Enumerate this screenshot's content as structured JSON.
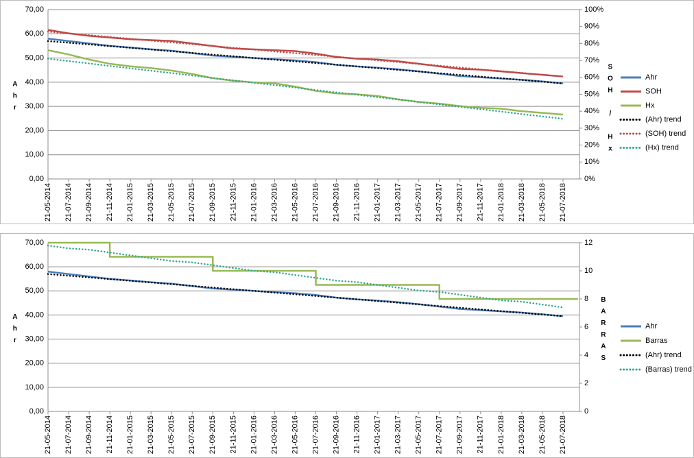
{
  "chart_data": [
    {
      "type": "line",
      "ylabel": "Ahr",
      "y2label": "SOH / Hx",
      "grid": true,
      "categories": [
        "21-05-2014",
        "21-07-2014",
        "21-09-2014",
        "21-11-2014",
        "21-01-2015",
        "21-03-2015",
        "21-05-2015",
        "21-07-2015",
        "21-09-2015",
        "21-11-2015",
        "21-01-2016",
        "21-03-2016",
        "21-05-2016",
        "21-07-2016",
        "21-09-2016",
        "21-11-2016",
        "21-01-2017",
        "21-03-2017",
        "21-05-2017",
        "21-07-2017",
        "21-09-2017",
        "21-11-2017",
        "21-01-2018",
        "21-03-2018",
        "21-05-2018",
        "21-07-2018"
      ],
      "ylim": [
        0,
        70
      ],
      "yticks": [
        {
          "value": 0,
          "label": "0,00"
        },
        {
          "value": 10,
          "label": "10,00"
        },
        {
          "value": 20,
          "label": "20,00"
        },
        {
          "value": 30,
          "label": "30,00"
        },
        {
          "value": 40,
          "label": "40,00"
        },
        {
          "value": 50,
          "label": "50,00"
        },
        {
          "value": 60,
          "label": "60,00"
        },
        {
          "value": 70,
          "label": "70,00"
        }
      ],
      "y2lim": [
        0,
        100
      ],
      "y2ticks": [
        {
          "value": 0,
          "label": "0%"
        },
        {
          "value": 10,
          "label": "10%"
        },
        {
          "value": 20,
          "label": "20%"
        },
        {
          "value": 30,
          "label": "30%"
        },
        {
          "value": 40,
          "label": "40%"
        },
        {
          "value": 50,
          "label": "50%"
        },
        {
          "value": 60,
          "label": "60%"
        },
        {
          "value": 70,
          "label": "70%"
        },
        {
          "value": 80,
          "label": "80%"
        },
        {
          "value": 90,
          "label": "90%"
        },
        {
          "value": 100,
          "label": "100%"
        }
      ],
      "series": [
        {
          "name": "Ahr",
          "color": "#4a7ebb",
          "values": [
            58,
            57,
            56,
            55,
            54.3,
            53.6,
            53,
            52,
            51,
            50.5,
            50,
            49.5,
            49,
            48.3,
            47.2,
            46.5,
            46,
            45.3,
            44.5,
            43.5,
            42.5,
            42,
            41.5,
            41,
            40.3,
            39.5
          ]
        },
        {
          "name": "SOH",
          "color": "#be4b48",
          "axis": "y2",
          "values": [
            88,
            86,
            84.5,
            83.5,
            82.5,
            82,
            81.5,
            80,
            78.5,
            77,
            76.5,
            76,
            75.5,
            74,
            72,
            71,
            70.5,
            69.5,
            68,
            66.5,
            65,
            64.5,
            63.5,
            62.5,
            61.5,
            60.5
          ]
        },
        {
          "name": "Hx",
          "color": "#98b954",
          "axis": "y2",
          "values": [
            76,
            73.5,
            70.5,
            68,
            66.5,
            65.5,
            64,
            62,
            59.5,
            58,
            57,
            56.5,
            54.5,
            52,
            50.5,
            50,
            49,
            47,
            45.5,
            44.5,
            43,
            42,
            41.5,
            40,
            39,
            38
          ]
        },
        {
          "name": "(Ahr) trend",
          "color": "#000000",
          "dotted": true,
          "values": [
            57,
            56.3,
            55.6,
            54.9,
            54.2,
            53.5,
            52.8,
            52.1,
            51.4,
            50.7,
            50,
            49.3,
            48.6,
            47.9,
            47.2,
            46.5,
            45.8,
            45.1,
            44.4,
            43.7,
            43,
            42.3,
            41.6,
            40.9,
            40.2,
            39.5
          ]
        },
        {
          "name": "(SOH) trend",
          "color": "#be4b48",
          "dotted": true,
          "axis": "y2",
          "values": [
            87,
            85.9,
            84.9,
            83.8,
            82.8,
            81.7,
            80.6,
            79.6,
            78.5,
            77.5,
            76.4,
            75.3,
            74.3,
            73.2,
            72.2,
            71.1,
            70,
            69,
            67.9,
            66.9,
            65.8,
            64.7,
            63.7,
            62.6,
            61.6,
            60.5
          ]
        },
        {
          "name": "(Hx) trend",
          "color": "#2ca88f",
          "dotted": true,
          "axis": "y2",
          "values": [
            71,
            69.6,
            68.2,
            66.7,
            65.3,
            63.9,
            62.5,
            61.1,
            59.6,
            58.2,
            56.8,
            55.4,
            54,
            52.5,
            51.1,
            49.7,
            48.3,
            46.9,
            45.4,
            44,
            42.6,
            41.2,
            39.8,
            38.3,
            36.9,
            35.5
          ]
        }
      ]
    },
    {
      "type": "line",
      "ylabel": "Ahr",
      "y2label": "BARRAS",
      "grid": true,
      "categories": [
        "21-05-2014",
        "21-07-2014",
        "21-09-2014",
        "21-11-2014",
        "21-01-2015",
        "21-03-2015",
        "21-05-2015",
        "21-07-2015",
        "21-09-2015",
        "21-11-2015",
        "21-01-2016",
        "21-03-2016",
        "21-05-2016",
        "21-07-2016",
        "21-09-2016",
        "21-11-2016",
        "21-01-2017",
        "21-03-2017",
        "21-05-2017",
        "21-07-2017",
        "21-09-2017",
        "21-11-2017",
        "21-01-2018",
        "21-03-2018",
        "21-05-2018",
        "21-07-2018"
      ],
      "ylim": [
        0,
        70
      ],
      "yticks": [
        {
          "value": 0,
          "label": "0,00"
        },
        {
          "value": 10,
          "label": "10,00"
        },
        {
          "value": 20,
          "label": "20,00"
        },
        {
          "value": 30,
          "label": "30,00"
        },
        {
          "value": 40,
          "label": "40,00"
        },
        {
          "value": 50,
          "label": "50,00"
        },
        {
          "value": 60,
          "label": "60,00"
        },
        {
          "value": 70,
          "label": "70,00"
        }
      ],
      "y2lim": [
        0,
        12
      ],
      "y2ticks": [
        0,
        2,
        4,
        6,
        8,
        10,
        12
      ],
      "series": [
        {
          "name": "Ahr",
          "color": "#4a7ebb",
          "values": [
            58,
            57,
            56,
            55,
            54.3,
            53.6,
            53,
            52,
            51,
            50.5,
            50,
            49.5,
            49,
            48.3,
            47.2,
            46.5,
            46,
            45.3,
            44.5,
            43.5,
            42.5,
            42,
            41.5,
            41,
            40.3,
            39.5
          ]
        },
        {
          "name": "Barras",
          "color": "#98b954",
          "axis": "y2",
          "step": true,
          "values": [
            12,
            12,
            12,
            11,
            11,
            11,
            11,
            11,
            10,
            10,
            10,
            10,
            10,
            9,
            9,
            9,
            9,
            9,
            9,
            8,
            8,
            8,
            8,
            8,
            8,
            8
          ]
        },
        {
          "name": "(Ahr) trend",
          "color": "#000000",
          "dotted": true,
          "values": [
            57,
            56.3,
            55.6,
            54.9,
            54.2,
            53.5,
            52.8,
            52.1,
            51.4,
            50.7,
            50,
            49.3,
            48.6,
            47.9,
            47.2,
            46.5,
            45.8,
            45.1,
            44.4,
            43.7,
            43,
            42.3,
            41.6,
            40.9,
            40.2,
            39.5
          ]
        },
        {
          "name": "(Barras) trend",
          "color": "#2ca88f",
          "dotted": true,
          "axis": "y2",
          "values": [
            11.8,
            11.6,
            11.5,
            11.3,
            11.1,
            10.9,
            10.7,
            10.6,
            10.4,
            10.2,
            10,
            9.9,
            9.7,
            9.5,
            9.3,
            9.2,
            9,
            8.8,
            8.6,
            8.5,
            8.3,
            8.1,
            7.9,
            7.8,
            7.6,
            7.4
          ]
        }
      ]
    }
  ]
}
